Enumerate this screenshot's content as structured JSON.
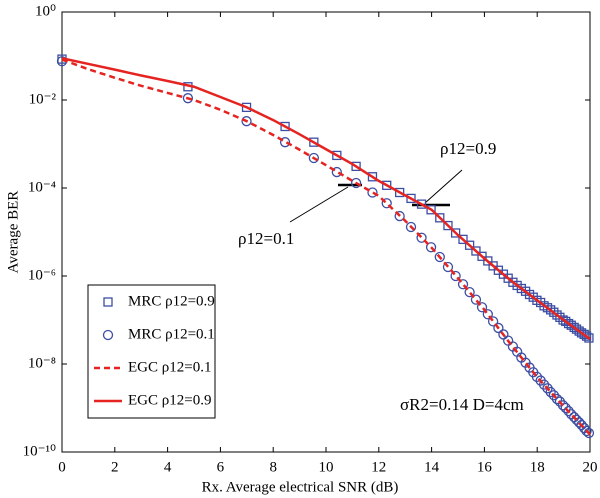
{
  "chart_data": {
    "type": "line",
    "x_label": "Rx. Average electrical SNR (dB)",
    "y_label": "Average BER",
    "xlim": [
      0,
      20
    ],
    "xticks": [
      0,
      2,
      4,
      6,
      8,
      10,
      12,
      14,
      16,
      18,
      20
    ],
    "ylim": [
      1e-10,
      1
    ],
    "log_y": true,
    "grid": false,
    "legend": "lower left",
    "yticks": [
      {
        "value": 1,
        "label": "10⁰"
      },
      {
        "value": 0.01,
        "label": "10⁻²"
      },
      {
        "value": 0.0001,
        "label": "10⁻⁴"
      },
      {
        "value": 1e-06,
        "label": "10⁻⁶"
      },
      {
        "value": 1e-08,
        "label": "10⁻⁸"
      },
      {
        "value": 1e-10,
        "label": "10⁻¹⁰"
      }
    ],
    "annotations": [
      "ρ12=0.9",
      "ρ12=0.1",
      "σR2=0.14 D=4cm"
    ],
    "series": [
      {
        "name": "MRC ρ12=0.9",
        "color": "#3b4ea3",
        "marker": "square",
        "line": "none",
        "x": [
          0,
          4.77,
          6.99,
          8.45,
          9.54,
          10.41,
          11.14,
          11.76,
          12.3,
          12.79,
          13.22,
          13.62,
          13.98,
          14.31,
          14.62,
          14.91,
          15.19,
          15.44,
          15.68,
          15.91,
          16.13,
          16.33,
          16.53,
          16.72,
          16.9,
          17.08,
          17.24,
          17.4,
          17.56,
          17.71,
          17.85,
          17.99,
          18.13,
          18.26,
          18.39,
          18.51,
          18.63,
          18.75,
          18.86,
          18.98,
          19.08,
          19.19,
          19.29,
          19.4,
          19.49,
          19.59,
          19.68,
          19.78,
          19.87,
          19.96
        ],
        "values": [
          0.085,
          0.02,
          0.0068,
          0.0025,
          0.0011,
          0.00055,
          0.00031,
          0.00018,
          0.000115,
          7.9e-05,
          5.8e-05,
          4.3e-05,
          3.2e-05,
          2.1e-05,
          1.4e-05,
          9.5e-06,
          6.8e-06,
          5e-06,
          3.7e-06,
          2.8e-06,
          2.2e-06,
          1.7e-06,
          1.35e-06,
          1.1e-06,
          8.9e-07,
          7.2e-07,
          6.1e-07,
          5.2e-07,
          4.5e-07,
          3.8e-07,
          3.3e-07,
          2.8e-07,
          2.5e-07,
          2.1e-07,
          1.9e-07,
          1.7e-07,
          1.5e-07,
          1.3e-07,
          1.15e-07,
          1e-07,
          9.3e-08,
          8.3e-08,
          7.6e-08,
          6.8e-08,
          6.2e-08,
          5.6e-08,
          5.1e-08,
          4.7e-08,
          4.3e-08,
          3.9e-08
        ]
      },
      {
        "name": "MRC ρ12=0.1",
        "color": "#3b4ea3",
        "marker": "circle",
        "line": "none",
        "x": [
          0,
          4.77,
          6.99,
          8.45,
          9.54,
          10.41,
          11.14,
          11.76,
          12.3,
          12.79,
          13.22,
          13.62,
          13.98,
          14.31,
          14.62,
          14.91,
          15.19,
          15.44,
          15.68,
          15.91,
          16.13,
          16.33,
          16.53,
          16.72,
          16.9,
          17.08,
          17.24,
          17.4,
          17.56,
          17.71,
          17.85,
          17.99,
          18.13,
          18.26,
          18.39,
          18.51,
          18.63,
          18.75,
          18.86,
          18.98,
          19.08,
          19.19,
          19.29,
          19.4,
          19.49,
          19.59,
          19.68,
          19.78,
          19.87,
          19.96
        ],
        "values": [
          0.076,
          0.011,
          0.0033,
          0.0011,
          0.00048,
          0.00023,
          0.00013,
          7.9e-05,
          4.5e-05,
          2.3e-05,
          1.3e-05,
          7.4e-06,
          4.5e-06,
          2.7e-06,
          1.6e-06,
          1e-06,
          6.5e-07,
          4.3e-07,
          2.9e-07,
          1.95e-07,
          1.35e-07,
          9.3e-08,
          6.6e-08,
          4.7e-08,
          3.4e-08,
          2.5e-08,
          1.9e-08,
          1.4e-08,
          1.07e-08,
          8.3e-09,
          6.5e-09,
          5.1e-09,
          4.2e-09,
          3.4e-09,
          2.8e-09,
          2.3e-09,
          1.95e-09,
          1.6e-09,
          1.4e-09,
          1.15e-09,
          1e-09,
          8.5e-10,
          7.2e-10,
          6.2e-10,
          5.4e-10,
          4.7e-10,
          4.1e-10,
          3.5e-10,
          3e-10,
          2.7e-10
        ]
      },
      {
        "name": "EGC ρ12=0.1",
        "color": "#e52421",
        "marker": "none",
        "line": "dashed",
        "x": [
          0,
          1,
          2,
          3,
          4,
          5,
          6,
          7,
          8,
          9,
          10,
          11,
          12,
          13,
          14,
          15,
          16,
          17,
          18,
          19,
          20
        ],
        "values": [
          0.083,
          0.05,
          0.032,
          0.021,
          0.0145,
          0.01,
          0.006,
          0.0033,
          0.0016,
          0.00074,
          0.00033,
          0.000145,
          6.6e-05,
          1.8e-05,
          4.4e-06,
          8.9e-07,
          1.7e-07,
          2.8e-08,
          5e-09,
          1.1e-09,
          2.5e-10
        ]
      },
      {
        "name": "EGC ρ12=0.9",
        "color": "#e52421",
        "marker": "none",
        "line": "solid",
        "x": [
          0,
          1,
          2,
          3,
          4,
          5,
          6,
          7,
          8,
          9,
          10,
          11,
          12,
          13,
          14,
          15,
          16,
          17,
          18,
          19,
          20
        ],
        "values": [
          0.089,
          0.066,
          0.049,
          0.036,
          0.027,
          0.02,
          0.0117,
          0.0068,
          0.0035,
          0.00166,
          0.00076,
          0.00035,
          0.000145,
          6.8e-05,
          3.2e-05,
          8.5e-06,
          2.5e-06,
          7.9e-07,
          2.8e-07,
          1e-07,
          3.7e-08
        ]
      }
    ]
  }
}
